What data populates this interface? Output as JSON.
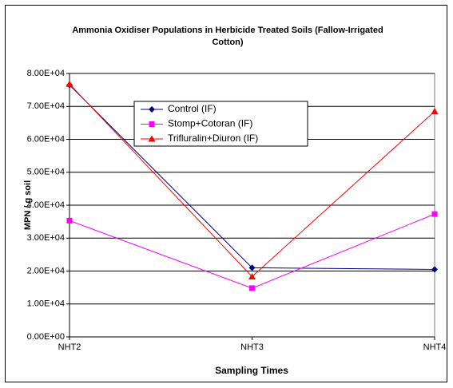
{
  "chart_data": {
    "type": "line",
    "title": "Ammonia Oxidiser Populations in Herbicide Treated Soils (Fallow-Irrigated Cotton)",
    "x_label": "Sampling Times",
    "y_label": "MPN / g soil",
    "categories": [
      "NHT2",
      "NHT3",
      "NHT4"
    ],
    "series": [
      {
        "name": "Control (IF)",
        "color": "#000080",
        "marker": "diamond",
        "values": [
          76500,
          21000,
          20500
        ]
      },
      {
        "name": "Stomp+Cotoran (IF)",
        "color": "#ff00ff",
        "marker": "square",
        "values": [
          35300,
          14800,
          37300
        ]
      },
      {
        "name": "Trifluralin+Diuron (IF)",
        "color": "#ff0000",
        "marker": "triangle",
        "values": [
          76800,
          18300,
          68500
        ]
      }
    ],
    "ylim": [
      0,
      80000
    ],
    "yticks": [
      {
        "value": 0,
        "label": "0.00E+00"
      },
      {
        "value": 10000,
        "label": "1.00E+04"
      },
      {
        "value": 20000,
        "label": "2.00E+04"
      },
      {
        "value": 30000,
        "label": "3.00E+04"
      },
      {
        "value": 40000,
        "label": "4.00E+04"
      },
      {
        "value": 50000,
        "label": "5.00E+04"
      },
      {
        "value": 60000,
        "label": "6.00E+04"
      },
      {
        "value": 70000,
        "label": "7.00E+04"
      },
      {
        "value": 80000,
        "label": "8.00E+04"
      }
    ],
    "grid": true,
    "legend": "upper left"
  }
}
